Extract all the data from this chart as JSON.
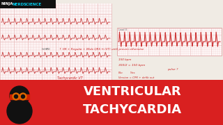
{
  "title_line1": "VENTRICULAR",
  "title_line2": "TACHYCARDIA",
  "title_color": "#ffffff",
  "banner_color": "#d92020",
  "bg_color": "#f0ebe4",
  "ecg_bg": "#fdf5f5",
  "ecg_grid_color": "#e8b8b8",
  "ecg_line_color": "#c84040",
  "note_color": "#cc2222",
  "header_bg": "#111111",
  "header_ninja": "NINJA",
  "header_nerd": "NERD",
  "header_science": "SCIENCE",
  "header_ninja_color": "#ffffff",
  "header_nerd_color": "#00ccee",
  "header_science_color": "#00ccee"
}
